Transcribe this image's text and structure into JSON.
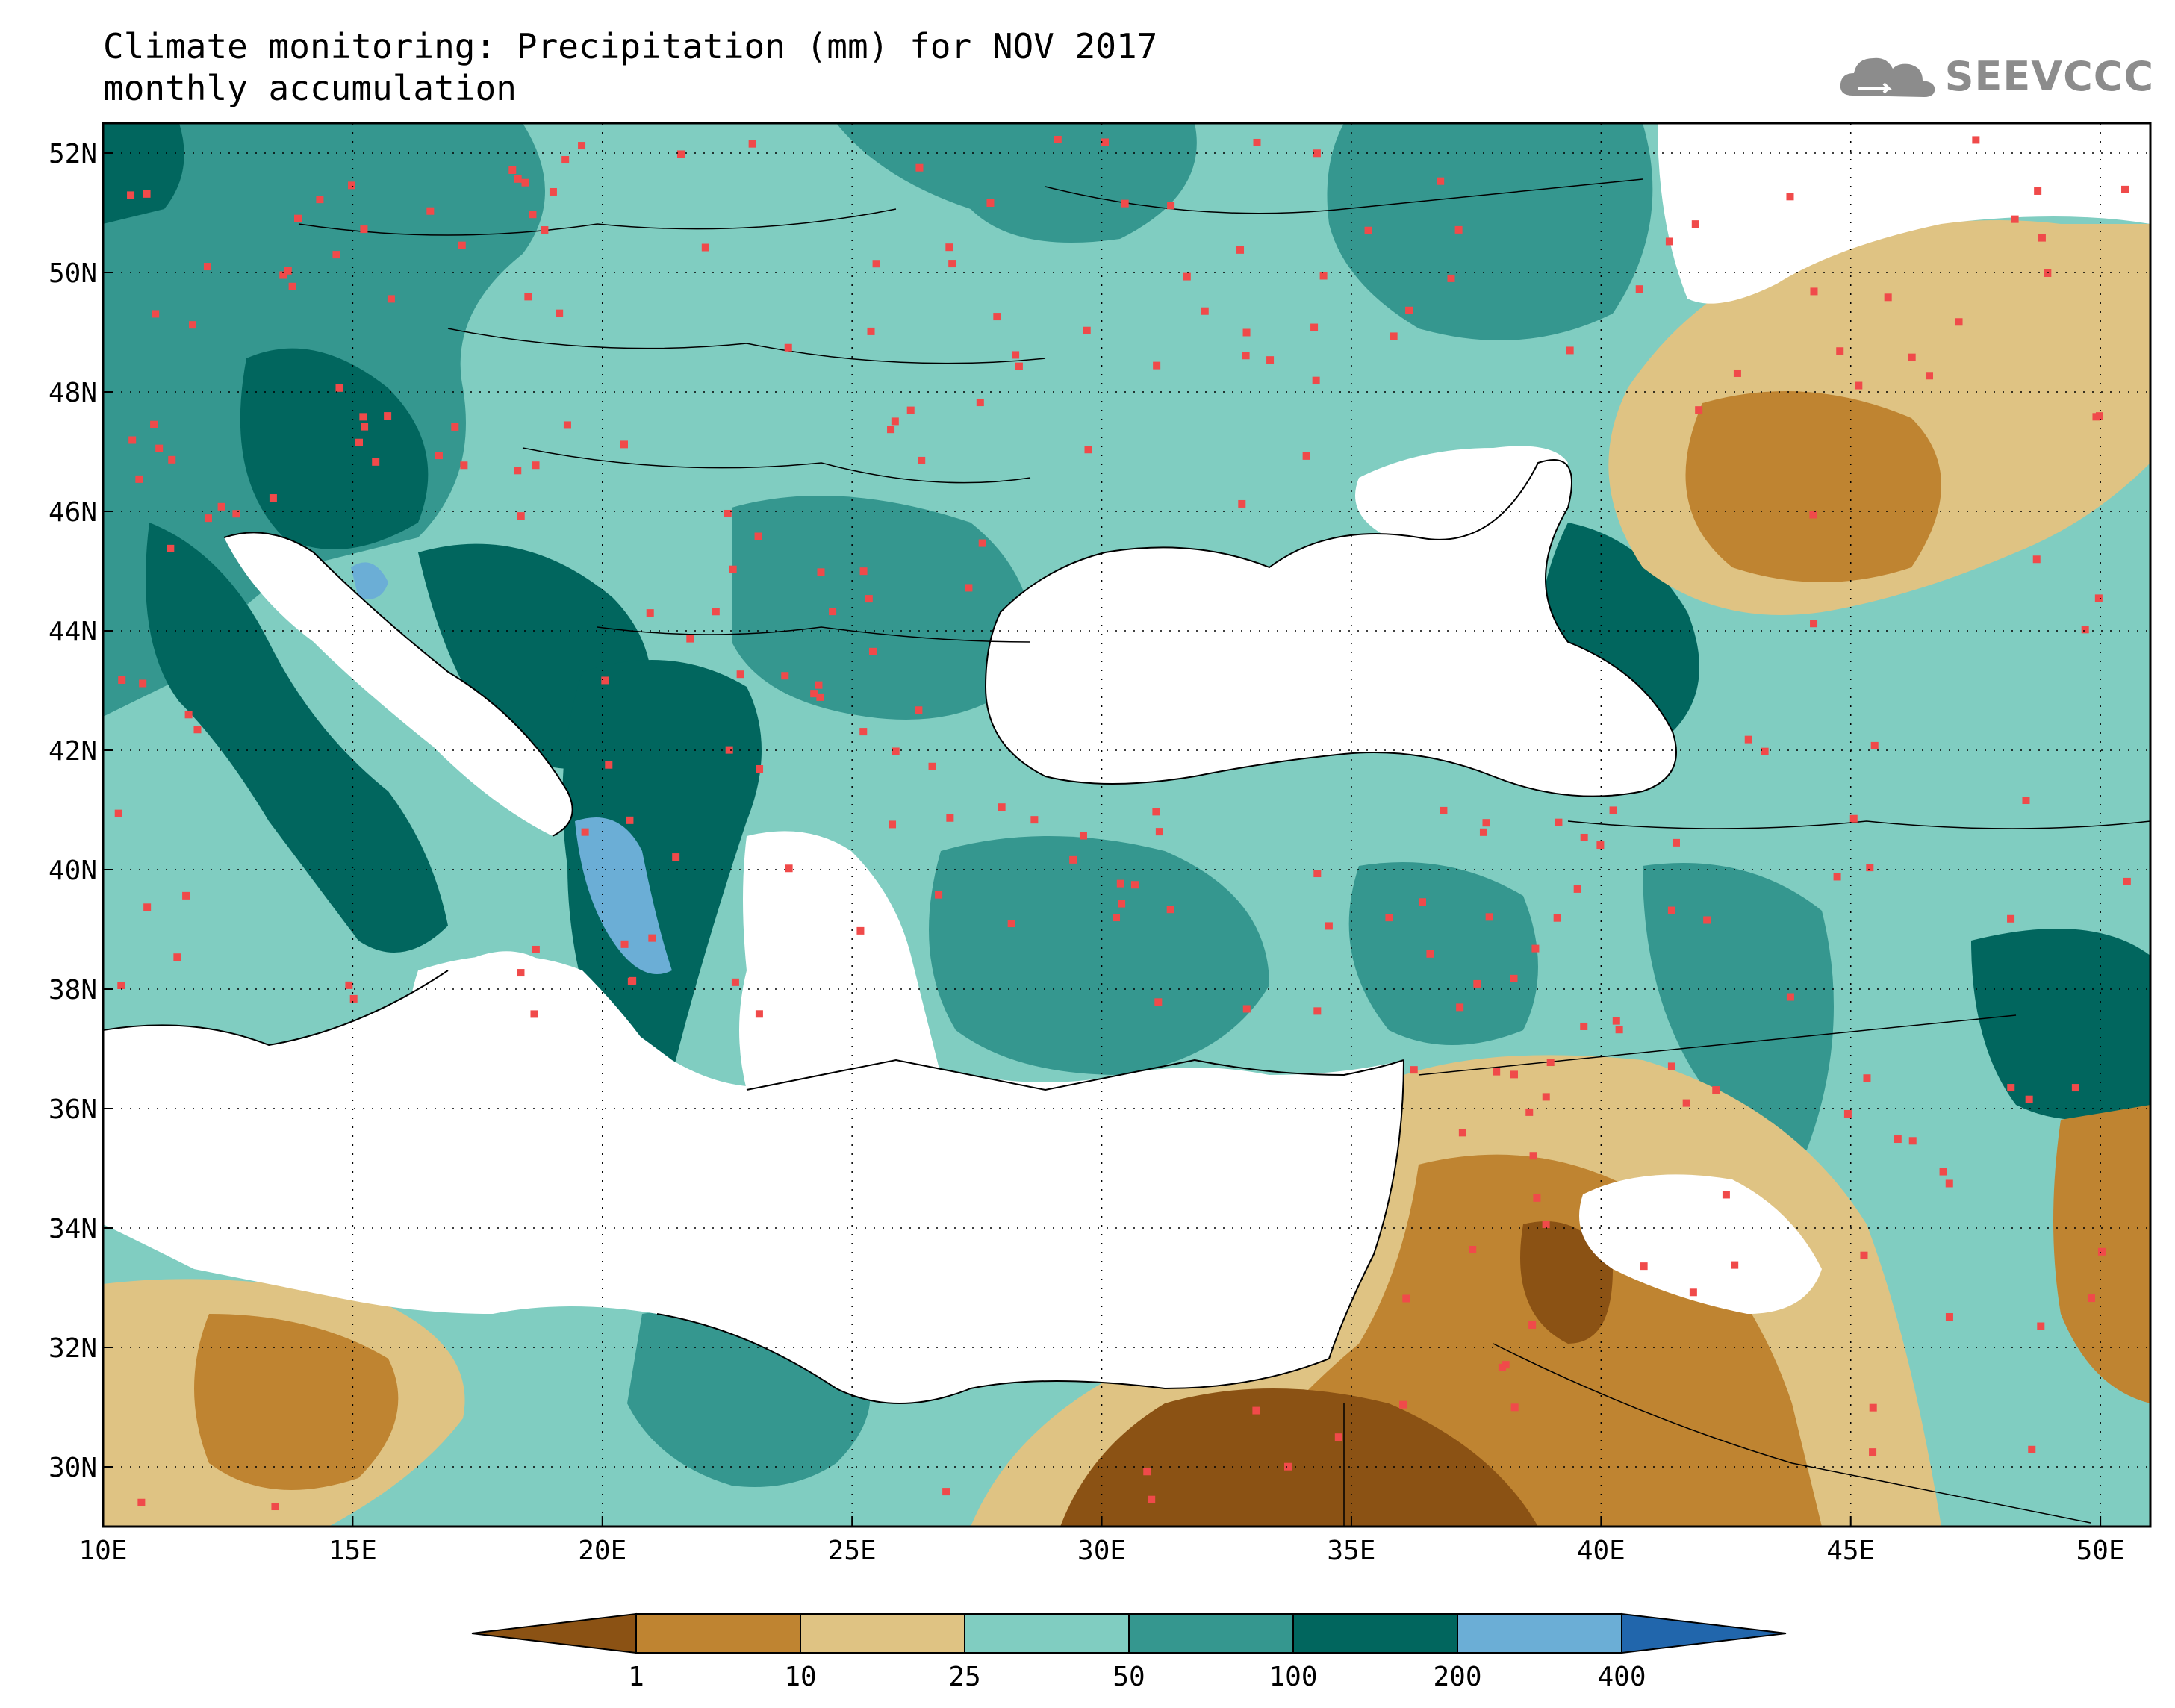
{
  "title": {
    "line1": "Climate monitoring: Precipitation (mm) for NOV 2017",
    "line2": "monthly accumulation"
  },
  "logo": {
    "text": "SEEVCCC",
    "icon": "cloud-icon",
    "color": "#8c8c8c"
  },
  "map": {
    "lon_range": [
      10,
      51
    ],
    "lat_range": [
      29,
      52.5
    ],
    "lon_ticks": [
      "10E",
      "15E",
      "20E",
      "25E",
      "30E",
      "35E",
      "40E",
      "45E",
      "50E"
    ],
    "lat_ticks": [
      "52N",
      "50N",
      "48N",
      "46N",
      "44N",
      "42N",
      "40N",
      "38N",
      "36N",
      "34N",
      "32N",
      "30N"
    ],
    "grid": "dotted",
    "station_marker_color": "#f04a4a",
    "sea_color": "#ffffff"
  },
  "colorbar": {
    "thresholds": [
      "1",
      "10",
      "25",
      "50",
      "100",
      "200",
      "400"
    ],
    "colors": [
      "#8b5214",
      "#bf8431",
      "#dfc383",
      "#80cdc1",
      "#35978f",
      "#01665e",
      "#6baed6",
      "#2166ac"
    ],
    "extend": "both"
  }
}
